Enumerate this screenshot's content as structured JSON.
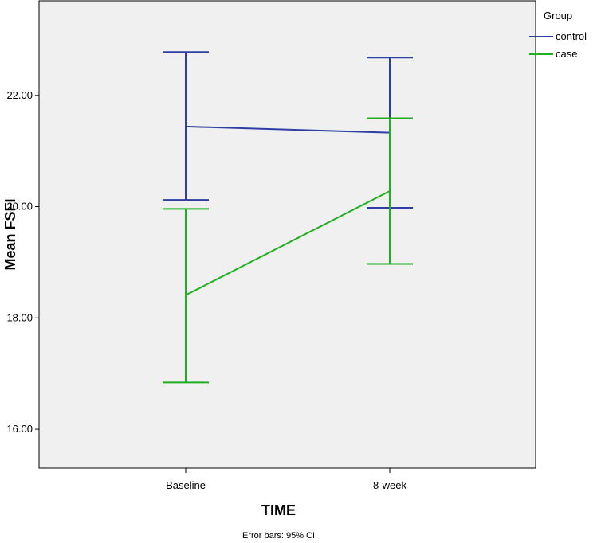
{
  "chart_data": {
    "type": "line",
    "title": "",
    "xlabel": "TIME",
    "ylabel": "Mean FSFI",
    "footnote": "Error bars: 95% CI",
    "categories": [
      "Baseline",
      "8-week"
    ],
    "ylim": [
      15.3,
      23.7
    ],
    "yticks": [
      16,
      18,
      20,
      22
    ],
    "ytick_labels": [
      "16.00",
      "18.00",
      "20.00",
      "22.00"
    ],
    "grid": false,
    "legend": {
      "title": "Group",
      "placement": "top-right"
    },
    "series": [
      {
        "name": "control",
        "color": "#2e3fa3",
        "values": [
          21.44,
          21.33
        ],
        "ci_lower": [
          20.12,
          19.98
        ],
        "ci_upper": [
          22.78,
          22.68
        ]
      },
      {
        "name": "case",
        "color": "#1fb01f",
        "values": [
          18.41,
          20.28
        ],
        "ci_lower": [
          16.84,
          18.97
        ],
        "ci_upper": [
          19.96,
          21.59
        ]
      }
    ]
  }
}
